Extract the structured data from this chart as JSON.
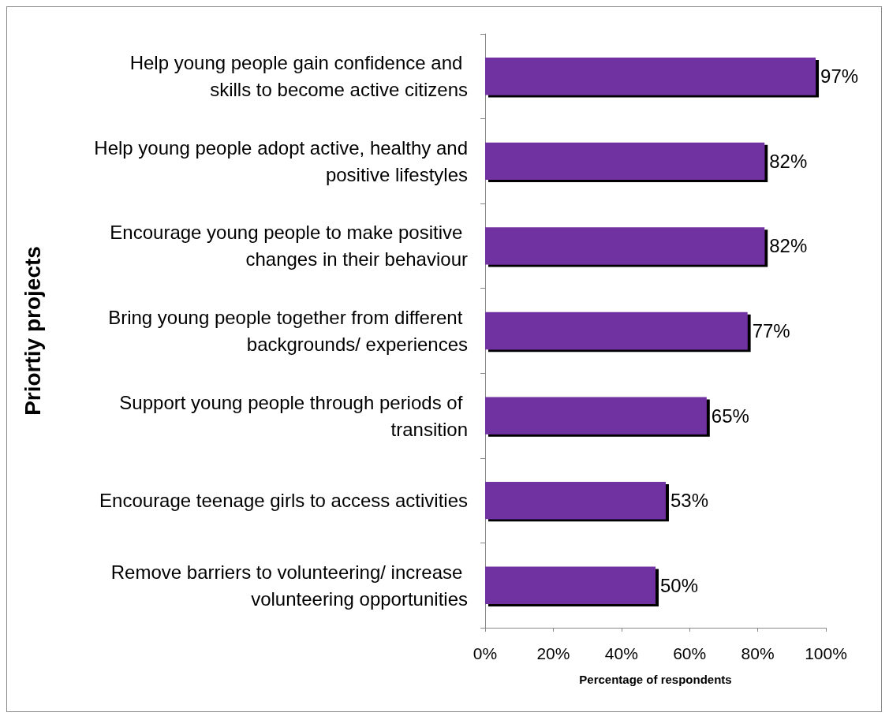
{
  "chart_data": {
    "type": "bar",
    "orientation": "horizontal",
    "xlabel": "Percentage of respondents",
    "ylabel": "Priortiy projects",
    "categories": [
      "Help young people gain confidence and skills to become active citizens",
      "Help young people adopt active, healthy and positive lifestyles",
      "Encourage young people to make positive changes in their behaviour",
      "Bring young people together from different backgrounds/ experiences",
      "Support young people through periods of transition",
      "Encourage teenage girls to access activities",
      "Remove barriers to volunteering/ increase volunteering opportunities"
    ],
    "values": [
      97,
      82,
      82,
      77,
      65,
      53,
      50
    ],
    "value_labels": [
      "97%",
      "82%",
      "82%",
      "77%",
      "65%",
      "53%",
      "50%"
    ],
    "color": "#7030a0",
    "xlim": [
      0,
      100
    ],
    "xticks": [
      {
        "value": 0,
        "label": "0%"
      },
      {
        "value": 20,
        "label": "20%"
      },
      {
        "value": 40,
        "label": "40%"
      },
      {
        "value": 60,
        "label": "60%"
      },
      {
        "value": 80,
        "label": "80%"
      },
      {
        "value": 100,
        "label": "100%"
      }
    ]
  }
}
